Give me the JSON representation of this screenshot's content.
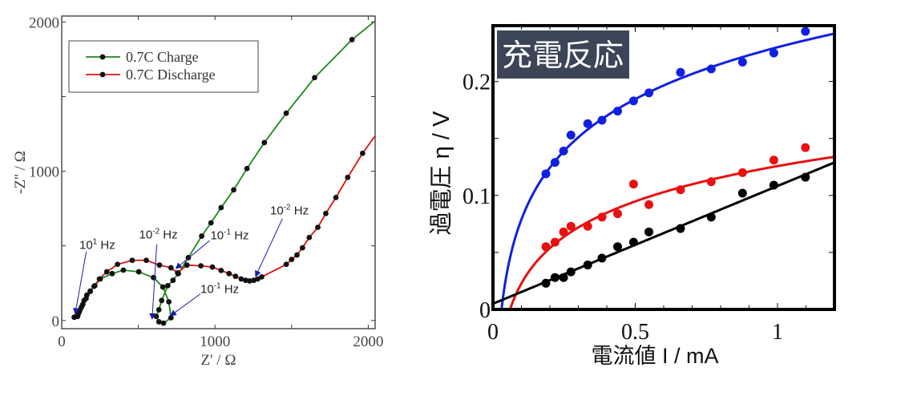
{
  "chart_data": [
    {
      "type": "line",
      "title": "",
      "xlabel": "Z' / Ω",
      "ylabel": "-Z'' / Ω",
      "xlim": [
        0,
        2045
      ],
      "ylim": [
        -55,
        2040
      ],
      "xticks": [
        0,
        1000,
        2000
      ],
      "yticks": [
        0,
        1000,
        2000
      ],
      "xtick_labels": [
        "0",
        "1000",
        "2000"
      ],
      "ytick_labels": [
        "0",
        "1000",
        "2000"
      ],
      "grid": false,
      "legend_position": "top-left",
      "series": [
        {
          "name": "0.7C Charge",
          "color": "#1a8a1a",
          "x": [
            82,
            103,
            113,
            129,
            146,
            164,
            186,
            216,
            251,
            329,
            402,
            503,
            599,
            660,
            699,
            713,
            664,
            634,
            617,
            634,
            652,
            692,
            726,
            761,
            826,
            913,
            974,
            1040,
            1122,
            1209,
            1322,
            1465,
            1650,
            1894,
            2045
          ],
          "y": [
            22,
            27,
            54,
            90,
            134,
            170,
            197,
            233,
            278,
            314,
            337,
            326,
            287,
            224,
            125,
            18,
            -18,
            -9,
            27,
            72,
            134,
            233,
            269,
            314,
            421,
            565,
            654,
            756,
            875,
            1018,
            1192,
            1389,
            1627,
            1882,
            2007
          ]
        },
        {
          "name": "0.7C Discharge",
          "color": "#e01010",
          "x": [
            82,
            106,
            120,
            138,
            159,
            186,
            211,
            246,
            294,
            364,
            460,
            552,
            638,
            713,
            756,
            817,
            908,
            983,
            1040,
            1092,
            1134,
            1171,
            1200,
            1226,
            1253,
            1279,
            1305,
            1465,
            1500,
            1535,
            1571,
            1615,
            1671,
            1723,
            1789,
            1866,
            1963,
            2045
          ],
          "y": [
            22,
            36,
            72,
            108,
            147,
            194,
            229,
            278,
            326,
            376,
            403,
            403,
            371,
            353,
            319,
            371,
            366,
            358,
            335,
            314,
            296,
            278,
            269,
            265,
            269,
            278,
            292,
            376,
            409,
            439,
            487,
            556,
            624,
            717,
            824,
            959,
            1120,
            1237
          ]
        }
      ],
      "annotations": [
        {
          "text_base": "10",
          "exp": "1",
          "unit": " Hz",
          "text_at": [
            115,
            480
          ],
          "arrow_from": [
            160,
            460
          ],
          "arrow_to": [
            88,
            45
          ]
        },
        {
          "text_base": "10",
          "exp": "-2",
          "unit": " Hz",
          "text_at": [
            505,
            550
          ],
          "arrow_from": [
            620,
            510
          ],
          "arrow_to": [
            590,
            10
          ]
        },
        {
          "text_base": "10",
          "exp": "-1",
          "unit": " Hz",
          "text_at": [
            970,
            545
          ],
          "arrow_from": [
            965,
            535
          ],
          "arrow_to": [
            745,
            348
          ]
        },
        {
          "text_base": "10",
          "exp": "-1",
          "unit": " Hz",
          "text_at": [
            905,
            185
          ],
          "arrow_from": [
            905,
            178
          ],
          "arrow_to": [
            710,
            32
          ]
        },
        {
          "text_base": "10",
          "exp": "-2",
          "unit": " Hz",
          "text_at": [
            1360,
            710
          ],
          "arrow_from": [
            1440,
            682
          ],
          "arrow_to": [
            1265,
            295
          ]
        }
      ]
    },
    {
      "type": "scatter",
      "title": "充電反応",
      "xlabel": "電流値 I / mA",
      "ylabel": "過電圧 η / V",
      "xlim": [
        0,
        1.2
      ],
      "ylim": [
        0,
        0.249
      ],
      "xticks": [
        0,
        0.5,
        1
      ],
      "yticks": [
        0,
        0.1,
        0.2
      ],
      "xtick_labels": [
        "0",
        "0.5",
        "1"
      ],
      "ytick_labels": [
        "0",
        "0.1",
        "0.2"
      ],
      "grid": false,
      "x": [
        0.186,
        0.218,
        0.248,
        0.274,
        0.333,
        0.383,
        0.438,
        0.494,
        0.548,
        0.659,
        0.767,
        0.877,
        0.987,
        1.098
      ],
      "series": [
        {
          "name": "blue",
          "color": "#1020e0",
          "y": [
            0.119,
            0.129,
            0.139,
            0.153,
            0.163,
            0.166,
            0.174,
            0.183,
            0.19,
            0.208,
            0.211,
            0.217,
            0.225,
            0.244
          ],
          "fit": {
            "type": "log",
            "x0": 0.03,
            "b": 0.0656
          }
        },
        {
          "name": "red",
          "color": "#e81010",
          "y": [
            0.055,
            0.059,
            0.068,
            0.073,
            0.073,
            0.081,
            0.084,
            0.11,
            0.092,
            0.105,
            0.112,
            0.12,
            0.131,
            0.142
          ],
          "fit": {
            "type": "log",
            "x0": 0.06,
            "b": 0.0447
          }
        },
        {
          "name": "black",
          "color": "#000000",
          "y": [
            0.023,
            0.028,
            0.028,
            0.033,
            0.039,
            0.045,
            0.055,
            0.059,
            0.068,
            0.071,
            0.081,
            0.102,
            0.109,
            0.116
          ],
          "fit": {
            "type": "linear",
            "a": 0.005,
            "b": 0.1033
          }
        }
      ]
    }
  ]
}
